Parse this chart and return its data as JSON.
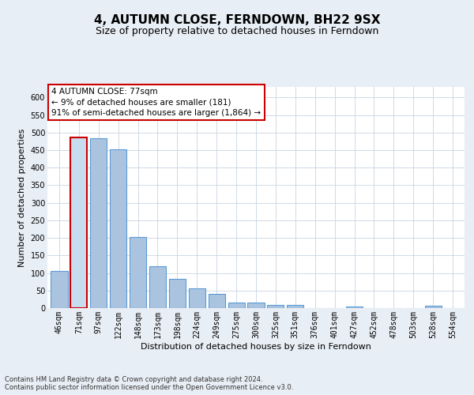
{
  "title": "4, AUTUMN CLOSE, FERNDOWN, BH22 9SX",
  "subtitle": "Size of property relative to detached houses in Ferndown",
  "xlabel": "Distribution of detached houses by size in Ferndown",
  "ylabel": "Number of detached properties",
  "footer_line1": "Contains HM Land Registry data © Crown copyright and database right 2024.",
  "footer_line2": "Contains public sector information licensed under the Open Government Licence v3.0.",
  "categories": [
    "46sqm",
    "71sqm",
    "97sqm",
    "122sqm",
    "148sqm",
    "173sqm",
    "198sqm",
    "224sqm",
    "249sqm",
    "275sqm",
    "300sqm",
    "325sqm",
    "351sqm",
    "376sqm",
    "401sqm",
    "427sqm",
    "452sqm",
    "478sqm",
    "503sqm",
    "528sqm",
    "554sqm"
  ],
  "values": [
    105,
    487,
    484,
    453,
    202,
    120,
    83,
    57,
    40,
    15,
    15,
    10,
    10,
    0,
    0,
    5,
    0,
    0,
    0,
    7,
    0
  ],
  "bar_color": "#aac4e0",
  "bar_edge_color": "#5b9bd5",
  "highlight_bar_index": 1,
  "highlight_bar_color": "#c8dcf0",
  "highlight_bar_edge_color": "#cc0000",
  "annotation_text": "4 AUTUMN CLOSE: 77sqm\n← 9% of detached houses are smaller (181)\n91% of semi-detached houses are larger (1,864) →",
  "annotation_box_edge_color": "#cc0000",
  "annotation_box_face_color": "#ffffff",
  "ylim": [
    0,
    630
  ],
  "yticks": [
    0,
    50,
    100,
    150,
    200,
    250,
    300,
    350,
    400,
    450,
    500,
    550,
    600
  ],
  "bg_color": "#e8eef5",
  "plot_bg_color": "#ffffff",
  "grid_color": "#c8d4e0",
  "title_fontsize": 11,
  "subtitle_fontsize": 9,
  "axis_label_fontsize": 8,
  "tick_fontsize": 7,
  "annotation_fontsize": 7.5,
  "footer_fontsize": 6
}
